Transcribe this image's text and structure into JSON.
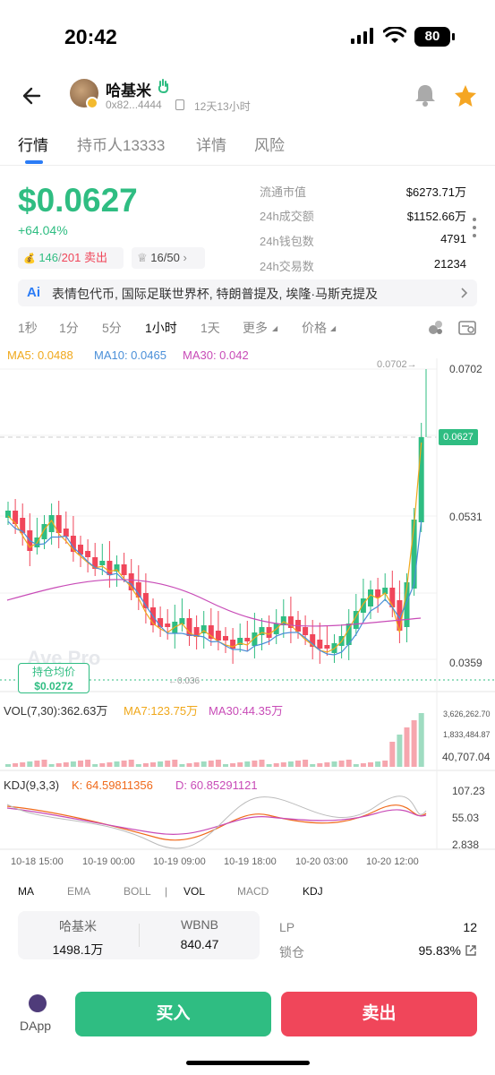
{
  "status": {
    "time": "20:42",
    "battery": "80"
  },
  "header": {
    "token_name": "哈基米",
    "address": "0x82...4444",
    "age": "12天13小时"
  },
  "tabs": [
    {
      "label": "行情"
    },
    {
      "label": "持币人13333"
    },
    {
      "label": "详情"
    },
    {
      "label": "风险"
    }
  ],
  "price": {
    "value": "$0.0627",
    "change": "+64.04%"
  },
  "chips": {
    "buy_count": "146",
    "sell_count": "201",
    "sell_label": "卖出",
    "separator": "/",
    "rank": "16/50"
  },
  "stats": [
    {
      "label": "流通市值",
      "value": "$6273.71万"
    },
    {
      "label": "24h成交额",
      "value": "$1152.66万"
    },
    {
      "label": "24h钱包数",
      "value": "4791"
    },
    {
      "label": "24h交易数",
      "value": "21234"
    }
  ],
  "news": {
    "text": "表情包代币, 国际足联世界杯, 特朗普提及, 埃隆·马斯克提及"
  },
  "timeframes": [
    {
      "label": "1秒"
    },
    {
      "label": "1分"
    },
    {
      "label": "5分"
    },
    {
      "label": "1小时"
    },
    {
      "label": "1天"
    },
    {
      "label": "更多"
    },
    {
      "label": "价格"
    }
  ],
  "ma_legend": {
    "ma5": "MA5: 0.0488",
    "ma10": "MA10: 0.0465",
    "ma30": "MA30: 0.042"
  },
  "chart": {
    "max_marker": "0.0702→",
    "current_price_tag": "0.0627",
    "y_labels": [
      "0.0702",
      "0.0531",
      "0.0359"
    ],
    "min_marker": "←0.036",
    "watermark": "Ave Pro",
    "avg_cost_label": "持仓均价",
    "avg_cost_value": "$0.0272"
  },
  "volume": {
    "legend_vol": "VOL(7,30):362.63万",
    "legend_ma7": "MA7:123.75万",
    "legend_ma30": "MA30:44.35万",
    "y_labels": [
      "3,626,262.70",
      "1,833,484.87",
      "40,707.04"
    ]
  },
  "kdj": {
    "legend_title": "KDJ(9,3,3)",
    "legend_k": "K: 64.59811356",
    "legend_d": "D: 60.85291121",
    "y_labels": [
      "107.23",
      "55.03",
      "2.838"
    ]
  },
  "time_axis": [
    "10-18 15:00",
    "10-19 00:00",
    "10-19 09:00",
    "10-19 18:00",
    "10-20 03:00",
    "10-20 12:00"
  ],
  "indicators": [
    {
      "label": "MA"
    },
    {
      "label": "EMA"
    },
    {
      "label": "BOLL"
    },
    {
      "label": "|"
    },
    {
      "label": "VOL"
    },
    {
      "label": "MACD"
    },
    {
      "label": "KDJ"
    }
  ],
  "pool": {
    "token_a": "哈基米",
    "token_a_amount": "1498.1万",
    "token_b": "WBNB",
    "token_b_amount": "840.47",
    "lp_label": "LP",
    "lp_value": "12",
    "lock_label": "锁仓",
    "lock_value": "95.83%"
  },
  "bottom": {
    "dapp_label": "DApp",
    "buy_label": "买入",
    "sell_label": "卖出"
  },
  "colors": {
    "up": "#2fbd82",
    "down": "#f0465a",
    "accent": "#2b7cf6",
    "ma5": "#f0a81b",
    "ma10": "#4a8fd8",
    "ma30": "#c84bb7"
  },
  "icons": [
    "back-arrow-icon",
    "bell-icon",
    "star-icon",
    "copy-icon",
    "more-dots-icon",
    "ai-icon",
    "chevron-right-icon",
    "indicator-settings-icon",
    "chart-settings-icon",
    "external-link-icon",
    "dapp-icon"
  ]
}
